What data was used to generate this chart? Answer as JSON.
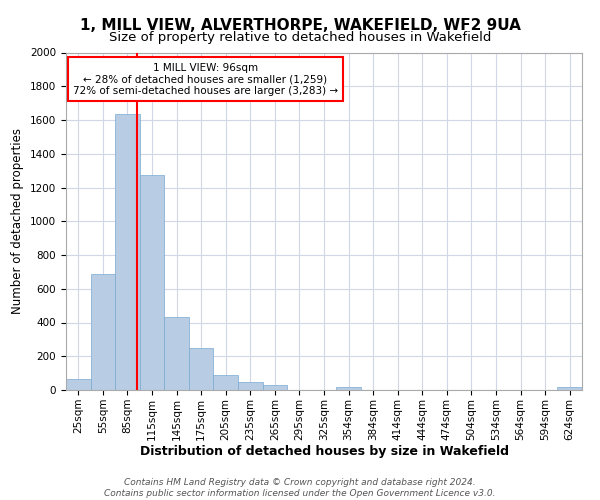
{
  "title": "1, MILL VIEW, ALVERTHORPE, WAKEFIELD, WF2 9UA",
  "subtitle": "Size of property relative to detached houses in Wakefield",
  "xlabel": "Distribution of detached houses by size in Wakefield",
  "ylabel": "Number of detached properties",
  "bar_color": "#b8cce4",
  "bar_edgecolor": "#7aaad0",
  "background_color": "#ffffff",
  "grid_color": "#d0d8e8",
  "categories": [
    "25sqm",
    "55sqm",
    "85sqm",
    "115sqm",
    "145sqm",
    "175sqm",
    "205sqm",
    "235sqm",
    "265sqm",
    "295sqm",
    "325sqm",
    "354sqm",
    "384sqm",
    "414sqm",
    "444sqm",
    "474sqm",
    "504sqm",
    "534sqm",
    "564sqm",
    "594sqm",
    "624sqm"
  ],
  "values": [
    65,
    685,
    1635,
    1275,
    435,
    250,
    90,
    50,
    30,
    0,
    0,
    15,
    0,
    0,
    0,
    0,
    0,
    0,
    0,
    0,
    15
  ],
  "ylim": [
    0,
    2000
  ],
  "yticks": [
    0,
    200,
    400,
    600,
    800,
    1000,
    1200,
    1400,
    1600,
    1800,
    2000
  ],
  "property_line_label": "1 MILL VIEW: 96sqm",
  "annotation_line1": "← 28% of detached houses are smaller (1,259)",
  "annotation_line2": "72% of semi-detached houses are larger (3,283) →",
  "footer1": "Contains HM Land Registry data © Crown copyright and database right 2024.",
  "footer2": "Contains public sector information licensed under the Open Government Licence v3.0.",
  "title_fontsize": 11,
  "subtitle_fontsize": 9.5,
  "xlabel_fontsize": 9,
  "ylabel_fontsize": 8.5,
  "tick_fontsize": 7.5,
  "footer_fontsize": 6.5,
  "red_line_index": 2.37
}
